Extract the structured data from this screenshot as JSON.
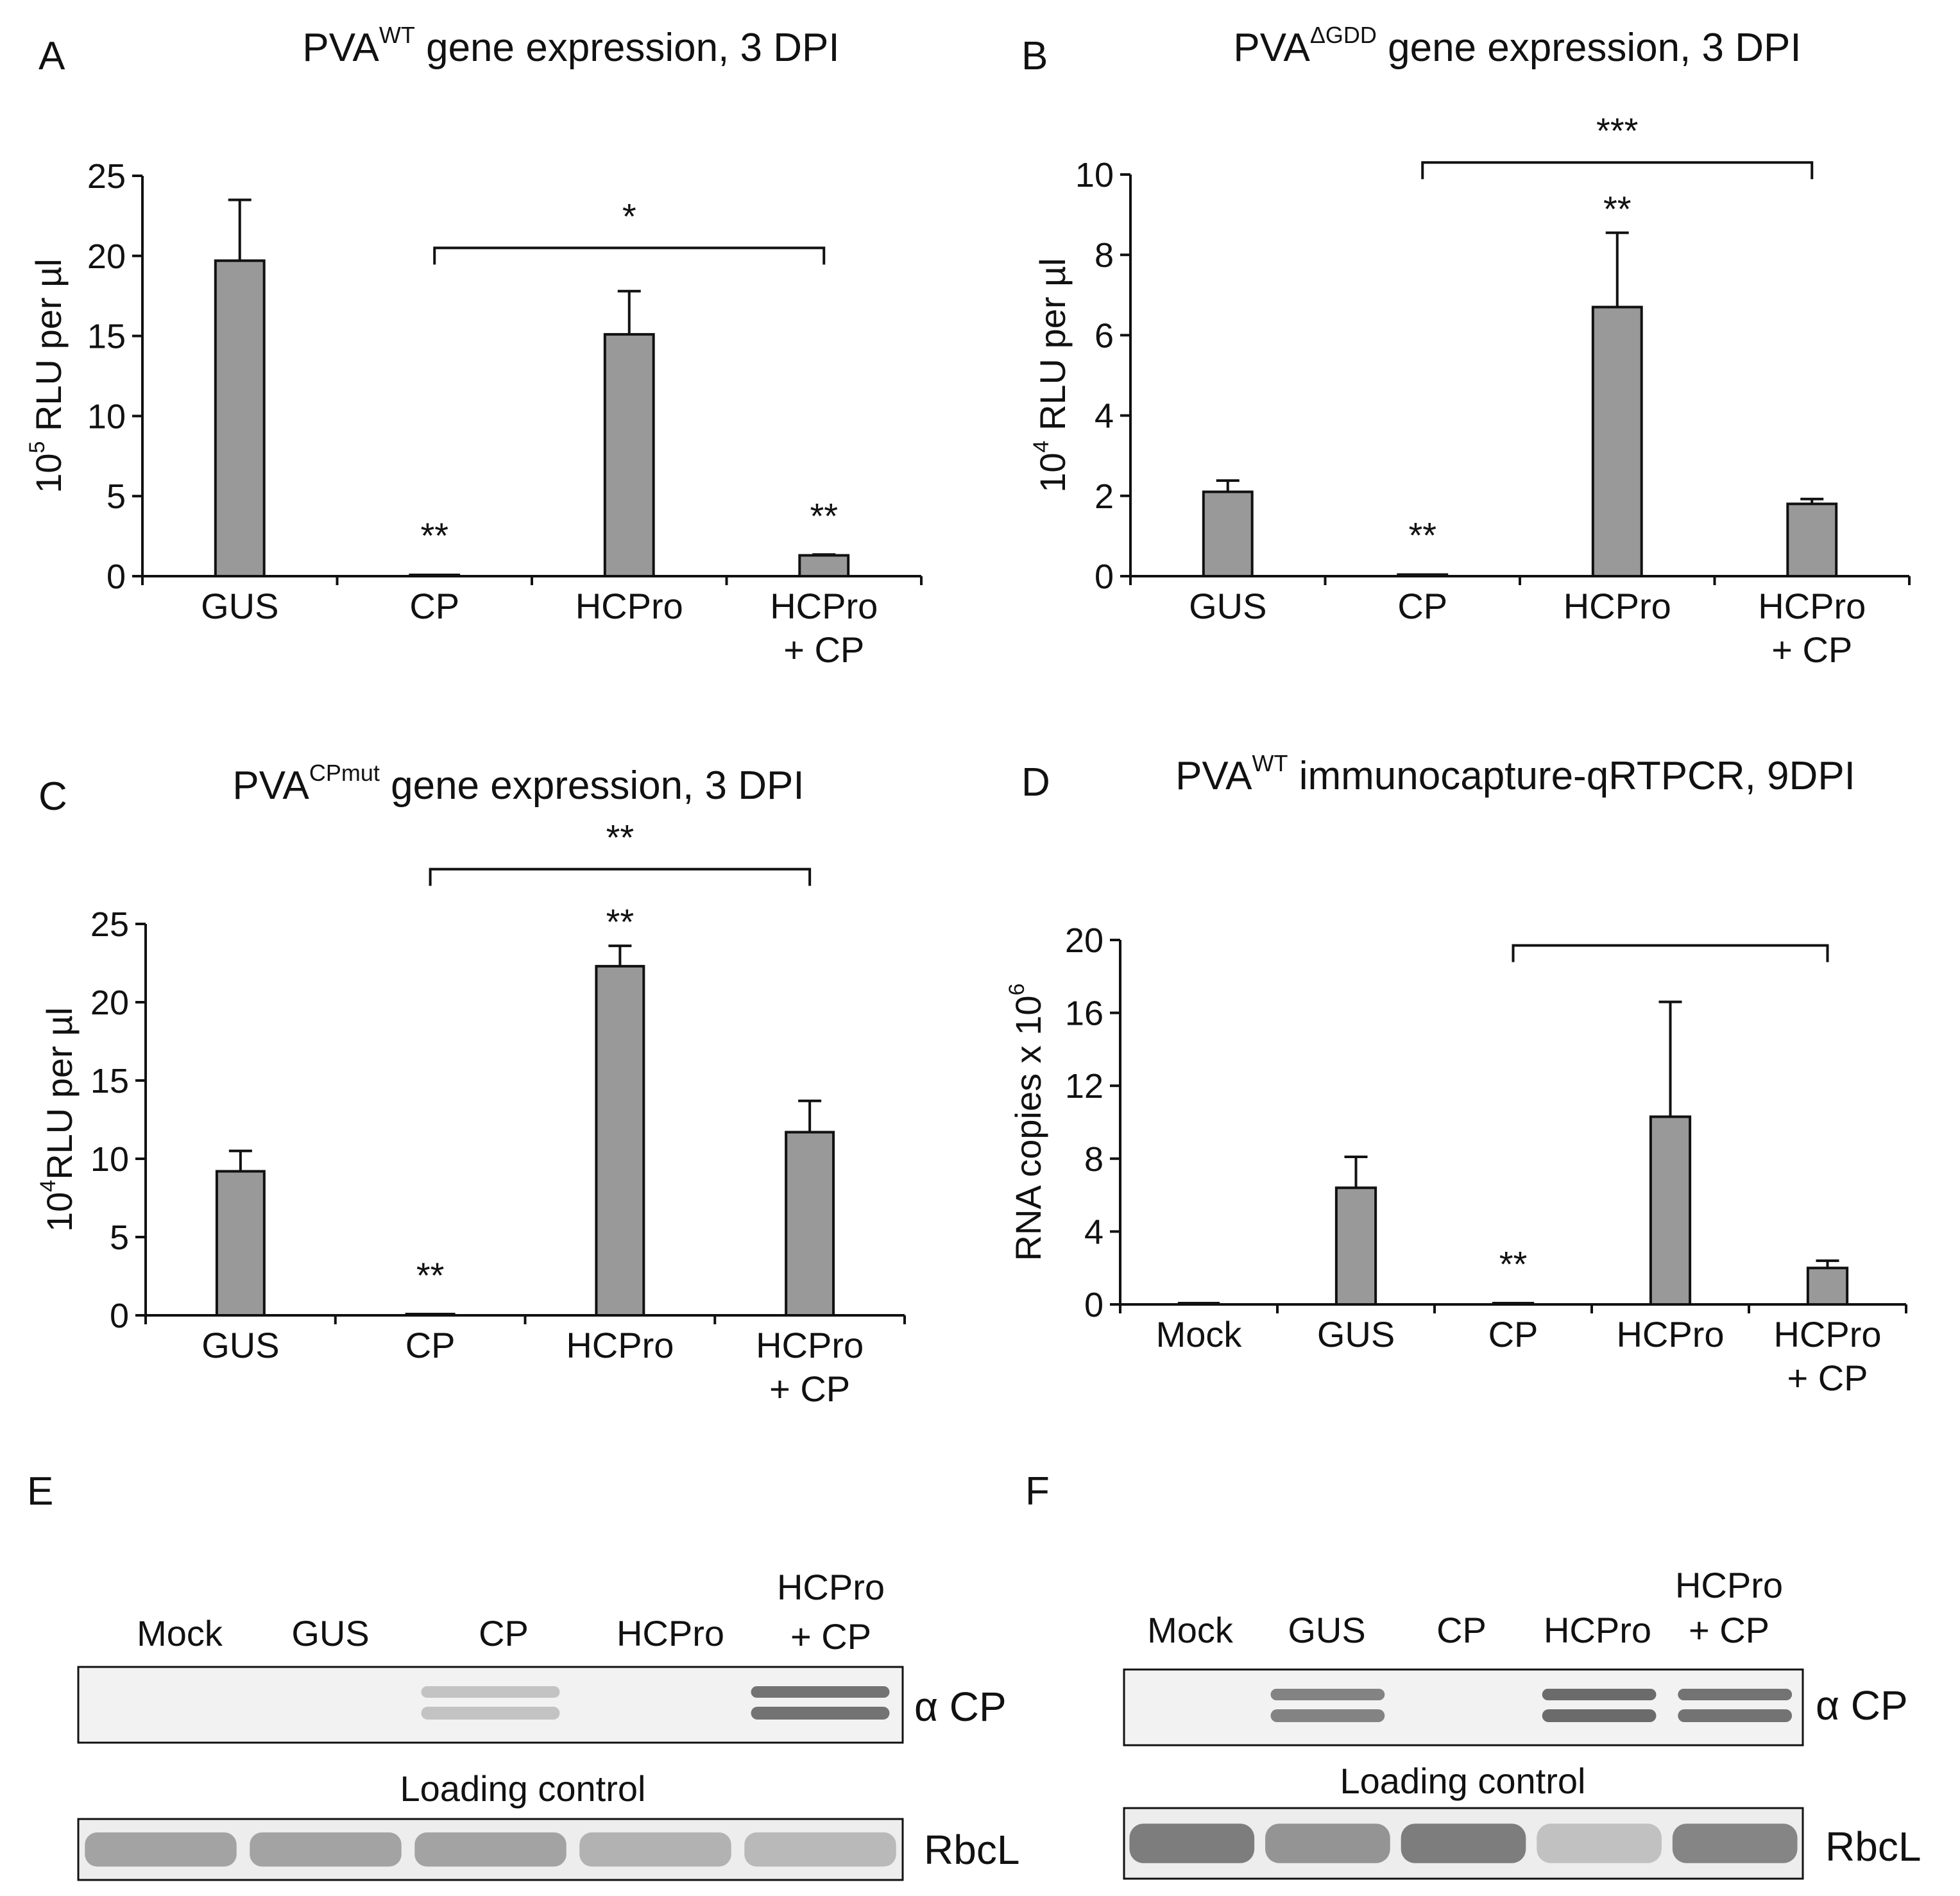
{
  "figure": {
    "bar_color": "#999999",
    "bar_stroke": "#111111",
    "ink": "#111111"
  },
  "chart_data": [
    {
      "id": "A",
      "type": "bar",
      "panel_letter": "A",
      "title": {
        "prefix": "PVA",
        "sup": "WT",
        "rest": " gene expression, 3 DPI"
      },
      "ylabel": {
        "base": "10",
        "sup": "5",
        "rest": " RLU per µl"
      },
      "ylim": [
        0,
        25
      ],
      "yticks": [
        0,
        5,
        10,
        15,
        20,
        25
      ],
      "categories": [
        [
          "GUS"
        ],
        [
          "CP"
        ],
        [
          "HCPro"
        ],
        [
          "HCPro",
          "+ CP"
        ]
      ],
      "values": [
        19.7,
        0.08,
        15.1,
        1.3
      ],
      "errors": [
        3.8,
        0,
        2.7,
        0.05
      ],
      "bar_stars": [
        "",
        "**",
        "",
        "**"
      ],
      "bracket": {
        "from": 1,
        "to": 3,
        "label": "*",
        "level": 20.5
      }
    },
    {
      "id": "B",
      "type": "bar",
      "panel_letter": "B",
      "title": {
        "prefix": "PVA",
        "sup": "ΔGDD",
        "rest": " gene expression, 3 DPI"
      },
      "ylabel": {
        "base": "10",
        "sup": "4",
        "rest": " RLU per µl"
      },
      "ylim": [
        0,
        10
      ],
      "yticks": [
        0,
        2,
        4,
        6,
        8,
        10
      ],
      "categories": [
        [
          "GUS"
        ],
        [
          "CP"
        ],
        [
          "HCPro"
        ],
        [
          "HCPro",
          "+ CP"
        ]
      ],
      "values": [
        2.1,
        0.04,
        6.7,
        1.8
      ],
      "errors": [
        0.28,
        0,
        1.85,
        0.12
      ],
      "bar_stars": [
        "",
        "**",
        "",
        ""
      ],
      "top_stars": [
        "",
        "",
        "**",
        ""
      ],
      "bracket": {
        "from": 1,
        "to": 3,
        "label": "***",
        "level": 10.3
      }
    },
    {
      "id": "C",
      "type": "bar",
      "panel_letter": "C",
      "title": {
        "prefix": "PVA",
        "sup": "CPmut",
        "rest": " gene expression, 3 DPI"
      },
      "ylabel": {
        "base": "10",
        "sup": "4",
        "rest": "RLU per µl"
      },
      "ylim": [
        0,
        25
      ],
      "yticks": [
        0,
        5,
        10,
        15,
        20,
        25
      ],
      "categories": [
        [
          "GUS"
        ],
        [
          "CP"
        ],
        [
          "HCPro"
        ],
        [
          "HCPro",
          "+ CP"
        ]
      ],
      "values": [
        9.2,
        0.05,
        22.3,
        11.7
      ],
      "errors": [
        1.3,
        0,
        1.3,
        2.0
      ],
      "bar_stars": [
        "",
        "**",
        "",
        ""
      ],
      "top_stars": [
        "",
        "",
        "**",
        ""
      ],
      "bracket": {
        "from": 1,
        "to": 3,
        "label": "**",
        "level": 28.5
      }
    },
    {
      "id": "D",
      "type": "bar",
      "panel_letter": "D",
      "title": {
        "prefix": "PVA",
        "sup": "WT",
        "rest": " immunocapture-qRTPCR, 9DPI"
      },
      "ylabel": {
        "base": "RNA copies x 10",
        "sup": "6",
        "rest": ""
      },
      "ylim": [
        0,
        20
      ],
      "yticks": [
        0,
        4,
        8,
        12,
        16,
        20
      ],
      "categories": [
        [
          "Mock"
        ],
        [
          "GUS"
        ],
        [
          "CP"
        ],
        [
          "HCPro"
        ],
        [
          "HCPro",
          "+ CP"
        ]
      ],
      "values": [
        0,
        6.4,
        0.05,
        10.3,
        2.0
      ],
      "errors": [
        0,
        1.7,
        0,
        6.3,
        0.4
      ],
      "bar_stars": [
        "",
        "",
        "**",
        "",
        ""
      ],
      "bracket": {
        "from": 2,
        "to": 4,
        "label": "",
        "level": 19.7
      }
    },
    {
      "id": "E",
      "type": "table",
      "panel_letter": "E",
      "lanes": [
        [
          "Mock"
        ],
        [
          "GUS"
        ],
        [
          "CP"
        ],
        [
          "HCPro"
        ],
        [
          "HCPro",
          "+ CP"
        ]
      ],
      "blot_label": "α CP",
      "loading_label": "Loading control",
      "loading_band_label": "RbcL",
      "cp_band_intensity": [
        0,
        0,
        0.25,
        0,
        0.75
      ],
      "rbcl_intensity": [
        0.45,
        0.45,
        0.45,
        0.35,
        0.3
      ]
    },
    {
      "id": "F",
      "type": "table",
      "panel_letter": "F",
      "lanes": [
        [
          "Mock"
        ],
        [
          "GUS"
        ],
        [
          "CP"
        ],
        [
          "HCPro"
        ],
        [
          "HCPro",
          "+ CP"
        ]
      ],
      "blot_label": "α CP",
      "loading_label": "Loading control",
      "loading_band_label": "RbcL",
      "cp_band_intensity": [
        0,
        0.65,
        0,
        0.8,
        0.75
      ],
      "rbcl_intensity": [
        0.7,
        0.55,
        0.7,
        0.25,
        0.65
      ]
    }
  ]
}
